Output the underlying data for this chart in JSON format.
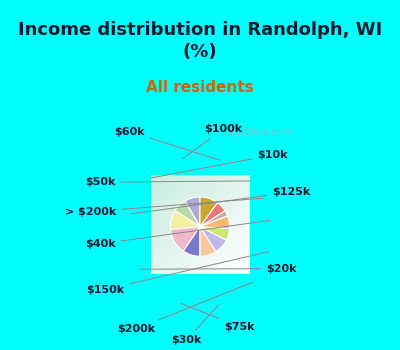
{
  "title": "Income distribution in Randolph, WI\n(%)",
  "subtitle": "All residents",
  "background_color": "#00FFFF",
  "labels": [
    "$100k",
    "$10k",
    "$125k",
    "$20k",
    "$75k",
    "$30k",
    "$200k",
    "$150k",
    "$40k",
    "> $200k",
    "$50k",
    "$60k"
  ],
  "sizes": [
    8.5,
    7.5,
    10.5,
    14.0,
    9.5,
    9.0,
    8.5,
    6.5,
    7.0,
    3.0,
    6.0,
    10.0
  ],
  "colors": [
    "#b0a8d8",
    "#b8d8a8",
    "#f0f0a0",
    "#f0b8c8",
    "#7878cc",
    "#f8c8a0",
    "#c0b8e8",
    "#c8e870",
    "#f8b870",
    "#c8a8a0",
    "#e87878",
    "#c8a830"
  ],
  "title_fontsize": 13,
  "subtitle_fontsize": 11,
  "title_color": "#1a1a2e",
  "subtitle_color": "#cc6600",
  "label_fontsize": 8,
  "watermark": "City-Data.com"
}
